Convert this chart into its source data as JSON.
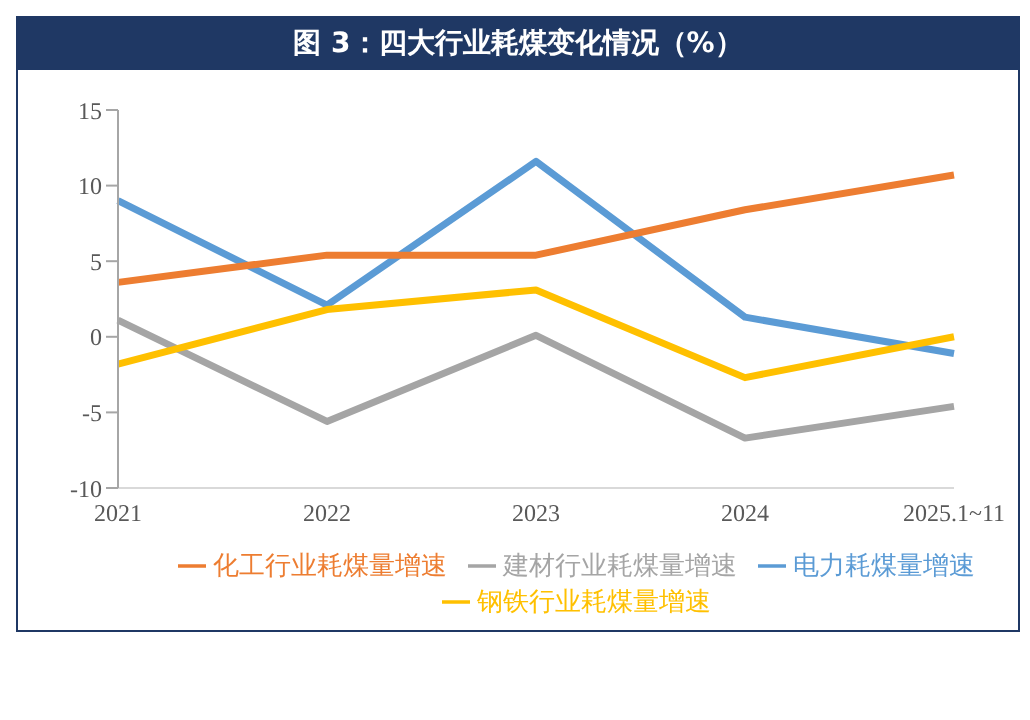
{
  "chart_data": {
    "type": "line",
    "title": "图 3：四大行业耗煤变化情况（%）",
    "categories": [
      "2021",
      "2022",
      "2023",
      "2024",
      "2025.1~11"
    ],
    "series": [
      {
        "name": "电力耗煤量增速",
        "color": "#5b9bd5",
        "values": [
          9.0,
          2.1,
          11.6,
          1.3,
          -1.1
        ]
      },
      {
        "name": "化工行业耗煤量增速",
        "color": "#ed7d31",
        "values": [
          3.6,
          5.4,
          5.4,
          8.4,
          10.7
        ]
      },
      {
        "name": "建材行业耗煤量增速",
        "color": "#a5a5a5",
        "values": [
          1.1,
          -5.6,
          0.1,
          -6.7,
          -4.6
        ]
      },
      {
        "name": "钢铁行业耗煤量增速",
        "color": "#ffc000",
        "values": [
          -1.8,
          1.8,
          3.1,
          -2.7,
          0
        ]
      }
    ],
    "ylim": [
      -10,
      15
    ],
    "yticks": [
      -10,
      -5,
      0,
      5,
      10,
      15
    ],
    "legend": "bottom",
    "marker": "none",
    "line_style": "solid"
  }
}
